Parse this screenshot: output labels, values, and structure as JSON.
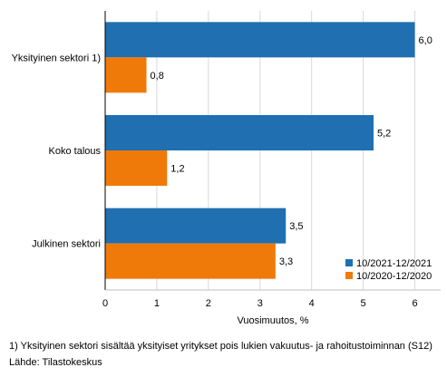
{
  "chart_data": {
    "type": "bar",
    "orientation": "horizontal",
    "categories": [
      "Yksityinen sektori 1)",
      "Koko talous",
      "Julkinen sektori"
    ],
    "series": [
      {
        "name": "10/2021-12/2021",
        "values": [
          6.0,
          5.2,
          3.5
        ],
        "labels": [
          "6,0",
          "5,2",
          "3,5"
        ],
        "color": "#1f6fb1"
      },
      {
        "name": "10/2020-12/2020",
        "values": [
          0.8,
          1.2,
          3.3
        ],
        "labels": [
          "0,8",
          "1,2",
          "3,3"
        ],
        "color": "#f07a09"
      }
    ],
    "xlabel": "Vuosimuutos, %",
    "ylabel": "",
    "xlim": [
      0,
      6.5
    ],
    "xticks": [
      0,
      1,
      2,
      3,
      4,
      5,
      6
    ],
    "grid": "vertical",
    "legend": "bottom-right"
  },
  "footnote": "1) Yksityinen sektori sisältää yksityiset yritykset pois lukien vakuutus- ja rahoitustoiminnan (S12)",
  "source": "Lähde: Tilastokeskus"
}
